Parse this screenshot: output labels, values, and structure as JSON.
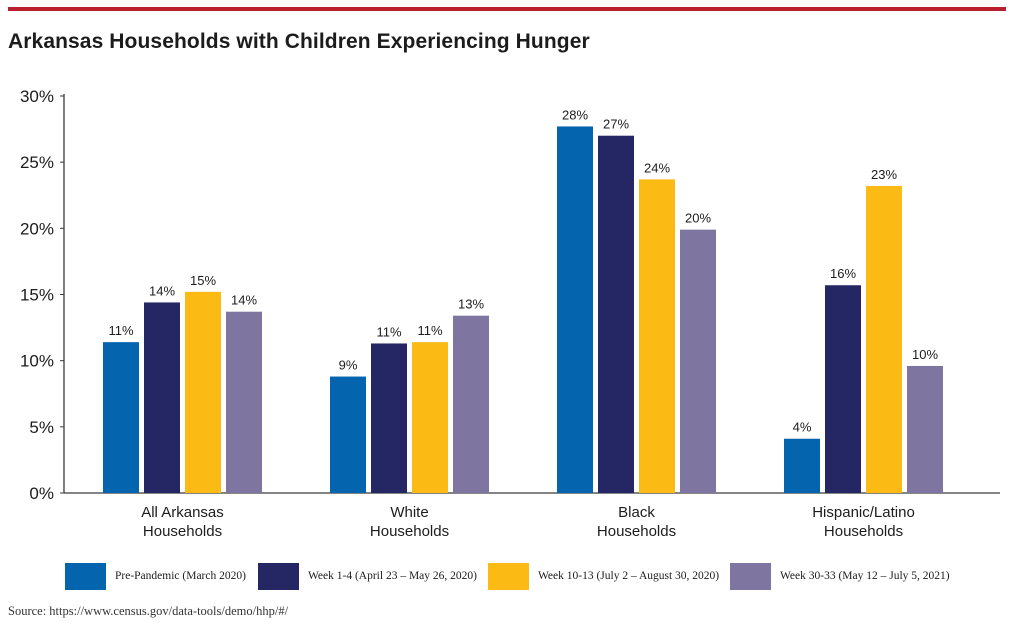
{
  "title": "Arkansas Households with Children Experiencing Hunger",
  "source_note": "Source: https://www.census.gov/data-tools/demo/hhp/#/",
  "colors": {
    "accent_rule": "#b8202e",
    "series": [
      "#0464ad",
      "#252664",
      "#fbbb14",
      "#7e76a1"
    ]
  },
  "chart_data": {
    "type": "bar",
    "title": "Arkansas Households with Children Experiencing Hunger",
    "categories": [
      [
        "All Arkansas",
        "Households"
      ],
      [
        "White",
        "Households"
      ],
      [
        "Black",
        "Households"
      ],
      [
        "Hispanic/Latino",
        "Households"
      ]
    ],
    "series": [
      {
        "name": "Pre-Pandemic (March 2020)",
        "values": [
          11.4,
          8.8,
          27.7,
          4.1
        ],
        "labels": [
          "11%",
          "9%",
          "28%",
          "4%"
        ]
      },
      {
        "name": "Week 1-4 (April 23 – May 26, 2020)",
        "values": [
          14.4,
          11.3,
          27.0,
          15.7
        ],
        "labels": [
          "14%",
          "11%",
          "27%",
          "16%"
        ]
      },
      {
        "name": "Week 10-13 (July 2 – August 30, 2020)",
        "values": [
          15.2,
          11.4,
          23.7,
          23.2
        ],
        "labels": [
          "15%",
          "11%",
          "24%",
          "23%"
        ]
      },
      {
        "name": "Week 30-33 (May 12 – July 5, 2021)",
        "values": [
          13.7,
          13.4,
          19.9,
          9.6
        ],
        "labels": [
          "14%",
          "13%",
          "20%",
          "10%"
        ]
      }
    ],
    "ylim": [
      0,
      30
    ],
    "yticks": [
      0,
      5,
      10,
      15,
      20,
      25,
      30
    ],
    "ytick_labels": [
      "0%",
      "5%",
      "10%",
      "15%",
      "20%",
      "25%",
      "30%"
    ],
    "xlabel": "",
    "ylabel": "",
    "grid": false,
    "legend_position": "bottom"
  }
}
